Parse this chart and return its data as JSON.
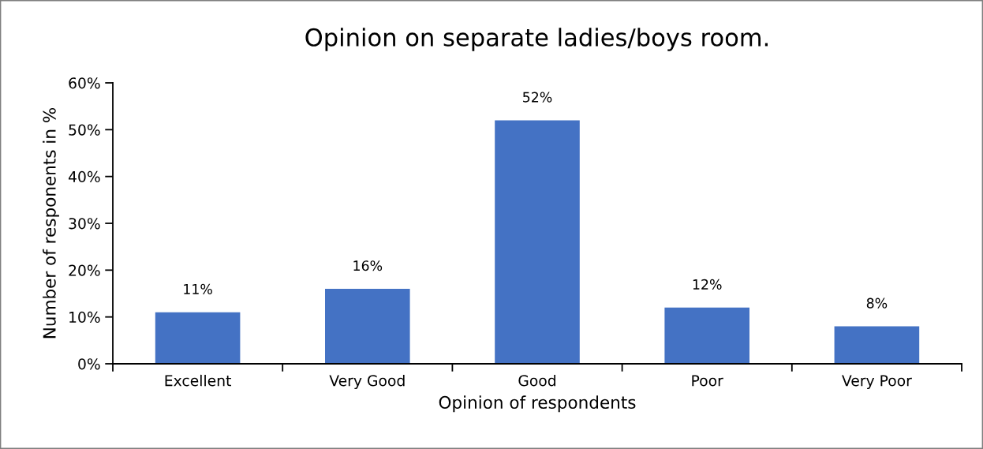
{
  "chart_data": {
    "type": "bar",
    "title": "Opinion on separate ladies/boys room.",
    "xlabel": "Opinion of respondents",
    "ylabel": "Number of responents in %",
    "categories": [
      "Excellent",
      "Very Good",
      "Good",
      "Poor",
      "Very Poor"
    ],
    "values": [
      11,
      16,
      52,
      12,
      8
    ],
    "value_labels": [
      "11%",
      "16%",
      "52%",
      "12%",
      "8%"
    ],
    "color": "#4472c4",
    "ylim": [
      0,
      60
    ],
    "yticks": [
      {
        "value": 0,
        "label": "0%"
      },
      {
        "value": 10,
        "label": "10%"
      },
      {
        "value": 20,
        "label": "20%"
      },
      {
        "value": 30,
        "label": "30%"
      },
      {
        "value": 40,
        "label": "40%"
      },
      {
        "value": 50,
        "label": "50%"
      },
      {
        "value": 60,
        "label": "60%"
      }
    ],
    "grid": false,
    "legend": false
  }
}
